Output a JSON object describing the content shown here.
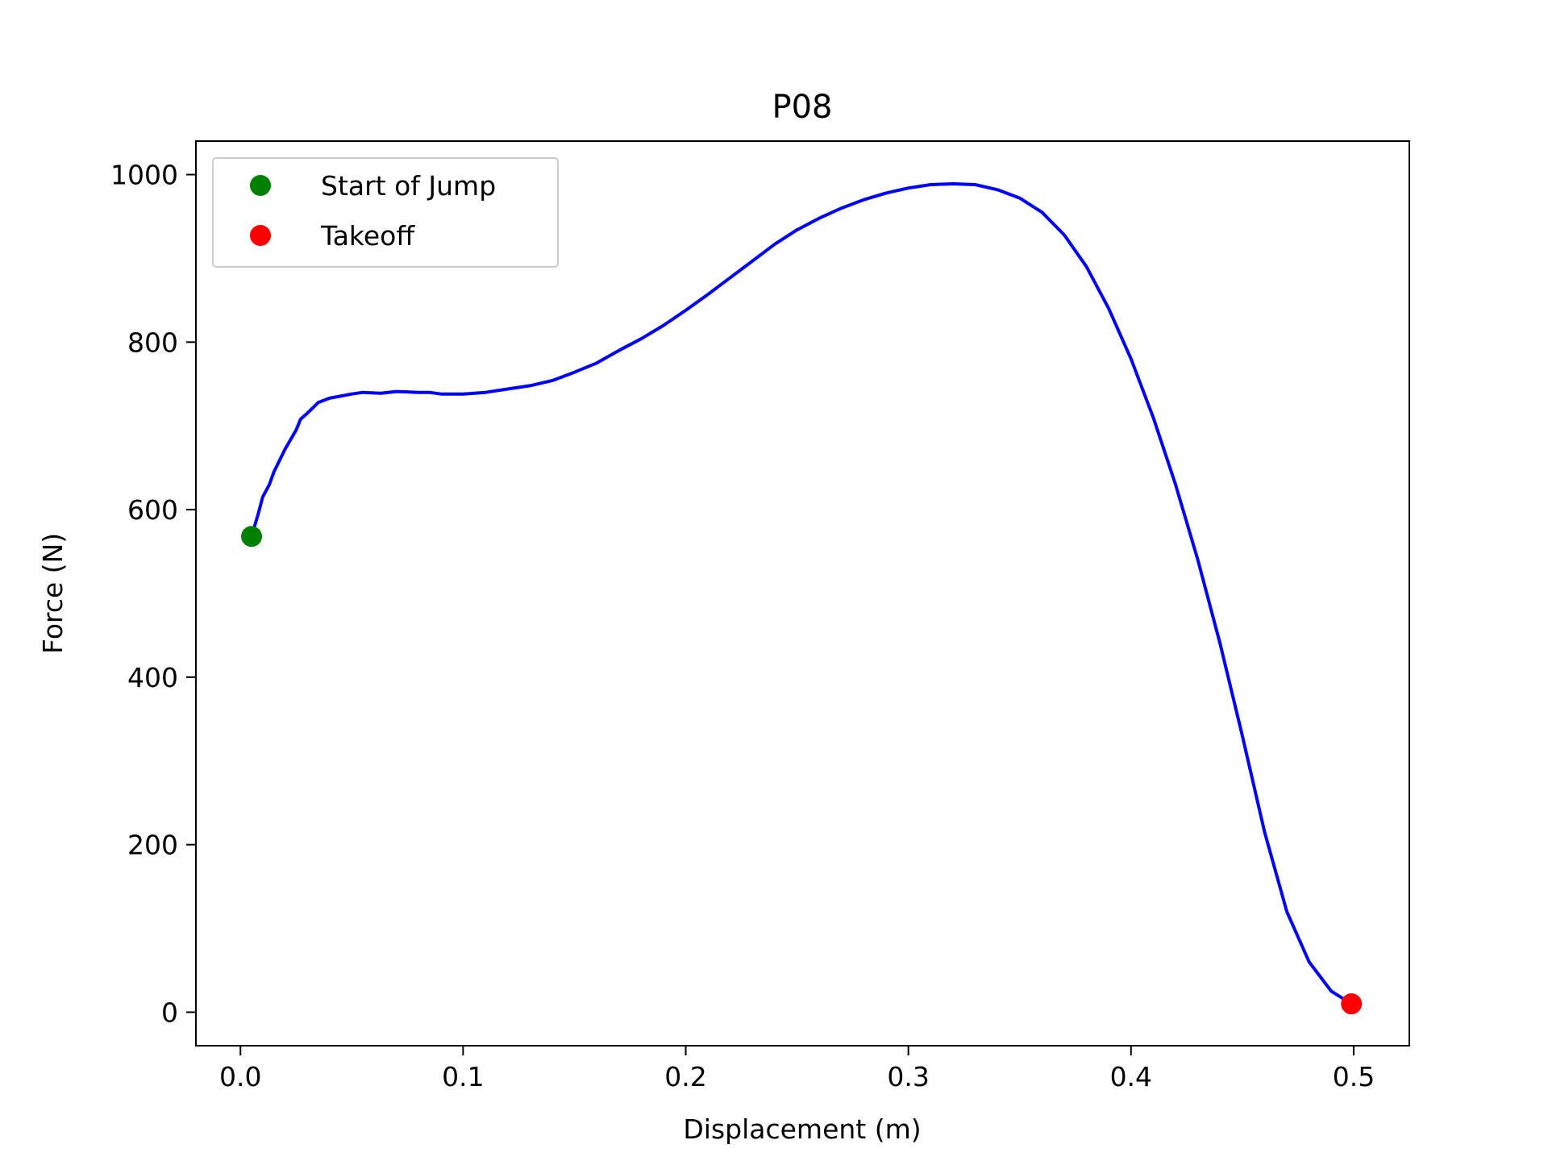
{
  "chart_data": {
    "type": "line",
    "title": "P08",
    "xlabel": "Displacement (m)",
    "ylabel": "Force (N)",
    "xlim": [
      -0.02,
      0.525
    ],
    "ylim": [
      -40,
      1040
    ],
    "xticks": [
      "0.0",
      "0.1",
      "0.2",
      "0.3",
      "0.4",
      "0.5"
    ],
    "yticks": [
      "0",
      "200",
      "400",
      "600",
      "800",
      "1000"
    ],
    "grid": false,
    "legend_position": "upper-left",
    "series": [
      {
        "color": "#0000ff",
        "points": [
          [
            0.005,
            568
          ],
          [
            0.008,
            595
          ],
          [
            0.01,
            615
          ],
          [
            0.013,
            630
          ],
          [
            0.015,
            645
          ],
          [
            0.02,
            672
          ],
          [
            0.025,
            695
          ],
          [
            0.027,
            708
          ],
          [
            0.03,
            715
          ],
          [
            0.035,
            728
          ],
          [
            0.04,
            733
          ],
          [
            0.05,
            738
          ],
          [
            0.055,
            740
          ],
          [
            0.063,
            739
          ],
          [
            0.07,
            741
          ],
          [
            0.08,
            740
          ],
          [
            0.085,
            740
          ],
          [
            0.09,
            738
          ],
          [
            0.1,
            738
          ],
          [
            0.11,
            740
          ],
          [
            0.12,
            744
          ],
          [
            0.13,
            748
          ],
          [
            0.14,
            754
          ],
          [
            0.15,
            764
          ],
          [
            0.16,
            775
          ],
          [
            0.17,
            790
          ],
          [
            0.18,
            804
          ],
          [
            0.19,
            820
          ],
          [
            0.2,
            838
          ],
          [
            0.21,
            857
          ],
          [
            0.22,
            877
          ],
          [
            0.23,
            897
          ],
          [
            0.24,
            917
          ],
          [
            0.25,
            934
          ],
          [
            0.26,
            948
          ],
          [
            0.27,
            960
          ],
          [
            0.28,
            970
          ],
          [
            0.29,
            978
          ],
          [
            0.3,
            984
          ],
          [
            0.31,
            988
          ],
          [
            0.32,
            989
          ],
          [
            0.33,
            988
          ],
          [
            0.34,
            982
          ],
          [
            0.35,
            972
          ],
          [
            0.36,
            955
          ],
          [
            0.37,
            928
          ],
          [
            0.38,
            890
          ],
          [
            0.39,
            840
          ],
          [
            0.4,
            780
          ],
          [
            0.41,
            710
          ],
          [
            0.42,
            630
          ],
          [
            0.43,
            540
          ],
          [
            0.44,
            440
          ],
          [
            0.45,
            330
          ],
          [
            0.46,
            215
          ],
          [
            0.47,
            120
          ],
          [
            0.48,
            60
          ],
          [
            0.49,
            25
          ],
          [
            0.499,
            10
          ]
        ]
      }
    ],
    "markers": [
      {
        "name": "Start of Jump",
        "x": 0.005,
        "y": 568,
        "color": "#008000"
      },
      {
        "name": "Takeoff",
        "x": 0.499,
        "y": 10,
        "color": "#ff0000"
      }
    ]
  }
}
